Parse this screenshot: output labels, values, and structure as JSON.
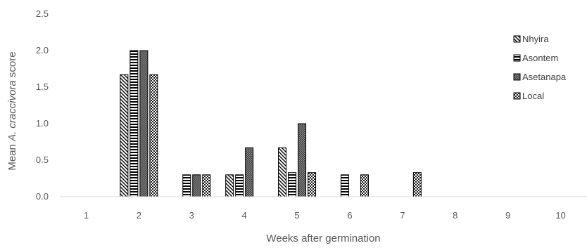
{
  "chart_data": {
    "type": "bar",
    "categories": [
      "1",
      "2",
      "3",
      "4",
      "5",
      "6",
      "7",
      "8",
      "9",
      "10"
    ],
    "series": [
      {
        "name": "Nhyira",
        "pattern": "diag",
        "values": [
          0,
          1.67,
          0,
          0.3,
          0.67,
          0,
          0,
          0,
          0,
          0
        ]
      },
      {
        "name": "Asontem",
        "pattern": "hlines",
        "values": [
          0,
          2.0,
          0.3,
          0.3,
          0.33,
          0.3,
          0,
          0,
          0,
          0
        ]
      },
      {
        "name": "Asetanapa",
        "pattern": "dots",
        "values": [
          0,
          2.0,
          0.3,
          0.67,
          1.0,
          0,
          0,
          0,
          0,
          0
        ]
      },
      {
        "name": "Local",
        "pattern": "checker",
        "values": [
          0,
          1.67,
          0.3,
          0,
          0.33,
          0.3,
          0.33,
          0,
          0,
          0
        ]
      }
    ],
    "ylim": [
      0,
      2.5
    ],
    "yticks": [
      "0.0",
      "0.5",
      "1.0",
      "1.5",
      "2.0",
      "2.5"
    ],
    "ylabel_prefix": "Mean ",
    "ylabel_italic": "A. craccivora",
    "ylabel_suffix": " score",
    "xlabel": "Weeks after germination",
    "legend_position": "right",
    "grid": false
  }
}
